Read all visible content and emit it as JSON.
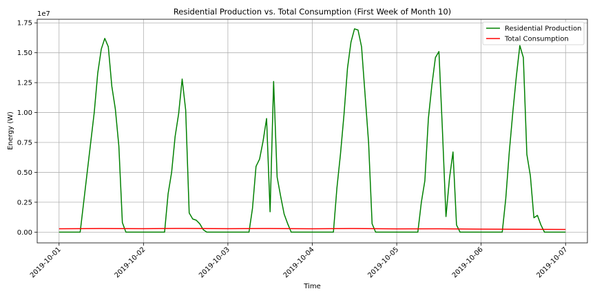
{
  "chart_data": {
    "type": "line",
    "title": "Residential Production vs. Total Consumption (First Week of Month 10)",
    "xlabel": "Time",
    "ylabel": "Energy (W)",
    "y_offset_label": "1e7",
    "xlim": [
      "2019-09-30T17:47",
      "2019-10-07T06:13"
    ],
    "ylim": [
      -900000.0,
      17800000.0
    ],
    "x_ticks": [
      "2019-10-01",
      "2019-10-02",
      "2019-10-03",
      "2019-10-04",
      "2019-10-05",
      "2019-10-06",
      "2019-10-07"
    ],
    "y_ticks": [
      {
        "value": 0,
        "label": "0.00"
      },
      {
        "value": 2500000,
        "label": "0.25"
      },
      {
        "value": 5000000,
        "label": "0.50"
      },
      {
        "value": 7500000,
        "label": "0.75"
      },
      {
        "value": 10000000,
        "label": "1.00"
      },
      {
        "value": 12500000,
        "label": "1.25"
      },
      {
        "value": 15000000,
        "label": "1.50"
      },
      {
        "value": 17500000,
        "label": "1.75"
      }
    ],
    "grid": true,
    "legend_position": "top-right",
    "series": [
      {
        "name": "Residential Production",
        "color": "#008000",
        "points": [
          [
            "2019-10-01T00:00",
            0
          ],
          [
            "2019-10-01T06:00",
            0
          ],
          [
            "2019-10-01T07:00",
            2500000
          ],
          [
            "2019-10-01T08:00",
            5000000
          ],
          [
            "2019-10-01T09:00",
            7500000
          ],
          [
            "2019-10-01T10:00",
            10000000
          ],
          [
            "2019-10-01T11:00",
            13300000
          ],
          [
            "2019-10-01T12:00",
            15300000
          ],
          [
            "2019-10-01T13:00",
            16200000
          ],
          [
            "2019-10-01T14:00",
            15500000
          ],
          [
            "2019-10-01T15:00",
            12200000
          ],
          [
            "2019-10-01T16:00",
            10300000
          ],
          [
            "2019-10-01T17:00",
            7200000
          ],
          [
            "2019-10-01T18:00",
            800000
          ],
          [
            "2019-10-01T19:00",
            0
          ],
          [
            "2019-10-02T06:00",
            0
          ],
          [
            "2019-10-02T07:00",
            3200000
          ],
          [
            "2019-10-02T08:00",
            5000000
          ],
          [
            "2019-10-02T09:00",
            8000000
          ],
          [
            "2019-10-02T10:00",
            9900000
          ],
          [
            "2019-10-02T11:00",
            12800000
          ],
          [
            "2019-10-02T12:00",
            10200000
          ],
          [
            "2019-10-02T13:00",
            1600000
          ],
          [
            "2019-10-02T14:00",
            1100000
          ],
          [
            "2019-10-02T15:00",
            1000000
          ],
          [
            "2019-10-02T16:00",
            700000
          ],
          [
            "2019-10-02T17:00",
            200000
          ],
          [
            "2019-10-02T18:00",
            0
          ],
          [
            "2019-10-03T06:00",
            0
          ],
          [
            "2019-10-03T07:00",
            2000000
          ],
          [
            "2019-10-03T08:00",
            5500000
          ],
          [
            "2019-10-03T09:00",
            6100000
          ],
          [
            "2019-10-03T10:00",
            7600000
          ],
          [
            "2019-10-03T11:00",
            9500000
          ],
          [
            "2019-10-03T12:00",
            1700000
          ],
          [
            "2019-10-03T13:00",
            12600000
          ],
          [
            "2019-10-03T14:00",
            4600000
          ],
          [
            "2019-10-03T15:00",
            3000000
          ],
          [
            "2019-10-03T16:00",
            1500000
          ],
          [
            "2019-10-03T17:00",
            700000
          ],
          [
            "2019-10-03T18:00",
            0
          ],
          [
            "2019-10-04T06:00",
            0
          ],
          [
            "2019-10-04T07:00",
            3700000
          ],
          [
            "2019-10-04T08:00",
            6500000
          ],
          [
            "2019-10-04T09:00",
            9800000
          ],
          [
            "2019-10-04T10:00",
            13700000
          ],
          [
            "2019-10-04T11:00",
            15900000
          ],
          [
            "2019-10-04T12:00",
            17000000
          ],
          [
            "2019-10-04T13:00",
            16900000
          ],
          [
            "2019-10-04T14:00",
            15500000
          ],
          [
            "2019-10-04T15:00",
            11500000
          ],
          [
            "2019-10-04T16:00",
            7500000
          ],
          [
            "2019-10-04T17:00",
            700000
          ],
          [
            "2019-10-04T18:00",
            0
          ],
          [
            "2019-10-05T06:00",
            0
          ],
          [
            "2019-10-05T07:00",
            2500000
          ],
          [
            "2019-10-05T08:00",
            4300000
          ],
          [
            "2019-10-05T09:00",
            9500000
          ],
          [
            "2019-10-05T10:00",
            12300000
          ],
          [
            "2019-10-05T11:00",
            14600000
          ],
          [
            "2019-10-05T12:00",
            15100000
          ],
          [
            "2019-10-05T13:00",
            8500000
          ],
          [
            "2019-10-05T14:00",
            1300000
          ],
          [
            "2019-10-05T15:00",
            4500000
          ],
          [
            "2019-10-05T16:00",
            6700000
          ],
          [
            "2019-10-05T17:00",
            600000
          ],
          [
            "2019-10-05T18:00",
            0
          ],
          [
            "2019-10-06T06:00",
            0
          ],
          [
            "2019-10-06T07:00",
            2800000
          ],
          [
            "2019-10-06T08:00",
            6700000
          ],
          [
            "2019-10-06T09:00",
            10000000
          ],
          [
            "2019-10-06T10:00",
            13000000
          ],
          [
            "2019-10-06T11:00",
            15600000
          ],
          [
            "2019-10-06T12:00",
            14600000
          ],
          [
            "2019-10-06T13:00",
            6500000
          ],
          [
            "2019-10-06T14:00",
            4700000
          ],
          [
            "2019-10-06T15:00",
            1200000
          ],
          [
            "2019-10-06T16:00",
            1400000
          ],
          [
            "2019-10-06T17:00",
            600000
          ],
          [
            "2019-10-06T18:00",
            0
          ],
          [
            "2019-10-07T00:00",
            0
          ]
        ]
      },
      {
        "name": "Total Consumption",
        "color": "#ff0000",
        "points": [
          [
            "2019-10-01T00:00",
            280000
          ],
          [
            "2019-10-01T12:00",
            300000
          ],
          [
            "2019-10-02T00:00",
            290000
          ],
          [
            "2019-10-02T12:00",
            310000
          ],
          [
            "2019-10-03T00:00",
            290000
          ],
          [
            "2019-10-03T12:00",
            300000
          ],
          [
            "2019-10-04T00:00",
            280000
          ],
          [
            "2019-10-04T12:00",
            300000
          ],
          [
            "2019-10-05T00:00",
            270000
          ],
          [
            "2019-10-05T12:00",
            280000
          ],
          [
            "2019-10-06T00:00",
            250000
          ],
          [
            "2019-10-06T12:00",
            240000
          ],
          [
            "2019-10-07T00:00",
            220000
          ]
        ]
      }
    ]
  }
}
